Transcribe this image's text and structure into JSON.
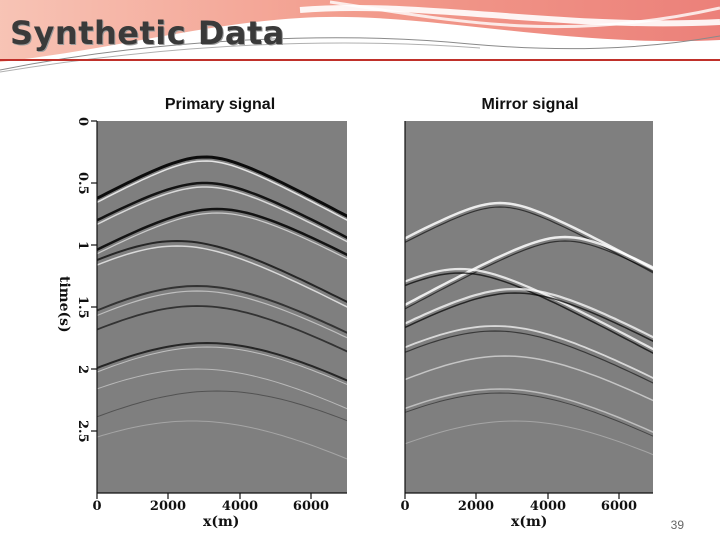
{
  "slide": {
    "title": "Synthetic Data",
    "page_number": "39"
  },
  "panels": [
    {
      "title": "Primary signal",
      "x_ticks": [
        "0",
        "2000",
        "4000",
        "6000"
      ],
      "x_label": "x(m)",
      "y_ticks": [
        "0",
        "0.5",
        "1",
        "1.5",
        "2",
        "2.5"
      ],
      "y_label": "time(s)"
    },
    {
      "title": "Mirror signal",
      "x_ticks": [
        "0",
        "2000",
        "4000",
        "6000"
      ],
      "x_label": "x(m)"
    }
  ],
  "colors": {
    "header_band": "#f08070",
    "header_line": "#c0302a",
    "seismic_background": "#7f7f7f"
  }
}
